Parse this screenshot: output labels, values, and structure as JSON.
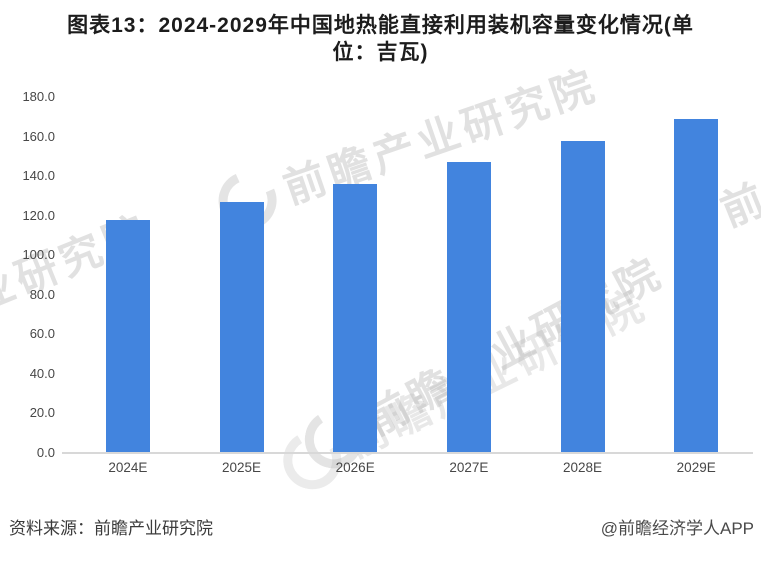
{
  "title_lines": [
    "图表13：2024-2029年中国地热能直接利用装机容量变化情况(单",
    "位：吉瓦)"
  ],
  "footer": {
    "source": "资料来源：前瞻产业研究院",
    "attribution": "@前瞻经济学人APP"
  },
  "watermark": {
    "text": "前瞻产业研究院",
    "logo": "qianzhan-ring-logo"
  },
  "colors": {
    "bar": "#4284DE",
    "axis_line": "#d8d8d8",
    "tick_label": "#474747",
    "title": "#1c1c1c",
    "footer": "#3b3b3b",
    "watermark": "#afafaf"
  },
  "chart_data": {
    "type": "bar",
    "title": "图表13：2024-2029年中国地热能直接利用装机容量变化情况(单位：吉瓦)",
    "unit_label": "吉瓦",
    "categories": [
      "2024E",
      "2025E",
      "2026E",
      "2027E",
      "2028E",
      "2029E"
    ],
    "values": [
      118,
      127,
      136,
      147,
      158,
      169
    ],
    "xlabel": "",
    "ylabel": "",
    "ylim": [
      0,
      180
    ],
    "yticks": [
      0,
      20,
      40,
      60,
      80,
      100,
      120,
      140,
      160,
      180
    ],
    "ytick_decimals": 1,
    "grid": false,
    "legend": false,
    "bar_color": "#4284DE"
  }
}
